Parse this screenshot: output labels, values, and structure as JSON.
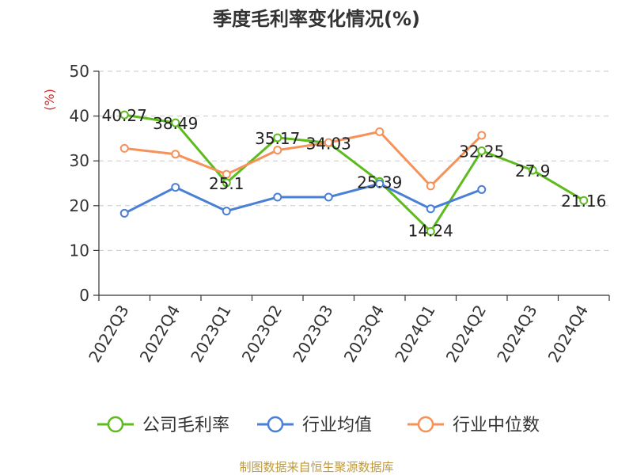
{
  "chart_data": {
    "type": "line",
    "title": "季度毛利率变化情况(%)",
    "ylabel": "(%)",
    "xlabel": "",
    "ylim": [
      0,
      50
    ],
    "yticks": [
      0,
      10,
      20,
      30,
      40,
      50
    ],
    "grid": "horizontal-dashed",
    "legend_position": "bottom",
    "categories": [
      "2022Q3",
      "2022Q4",
      "2023Q1",
      "2023Q2",
      "2023Q3",
      "2023Q4",
      "2024Q1",
      "2024Q2",
      "2024Q3",
      "2024Q4"
    ],
    "series": [
      {
        "name": "公司毛利率",
        "color": "#5dbb1e",
        "values": [
          40.27,
          38.49,
          25.1,
          35.17,
          34.03,
          25.39,
          14.24,
          32.25,
          27.9,
          21.16
        ],
        "labels": [
          "40.27",
          "38.49",
          "25.1",
          "35.17",
          "34.03",
          "25.39",
          "14.24",
          "32.25",
          "27.9",
          "21.16"
        ]
      },
      {
        "name": "行业均值",
        "color": "#4a7fd6",
        "values": [
          18.3,
          24.1,
          18.8,
          21.9,
          21.9,
          24.9,
          19.3,
          23.6,
          null,
          null
        ]
      },
      {
        "name": "行业中位数",
        "color": "#f5925a",
        "values": [
          32.8,
          31.5,
          27.0,
          32.4,
          34.1,
          36.5,
          24.4,
          35.7,
          null,
          null
        ]
      }
    ]
  },
  "footer": {
    "source": "制图数据来自恒生聚源数据库",
    "source_color": "#c09a3a"
  },
  "unit_color": "#d62b2b"
}
